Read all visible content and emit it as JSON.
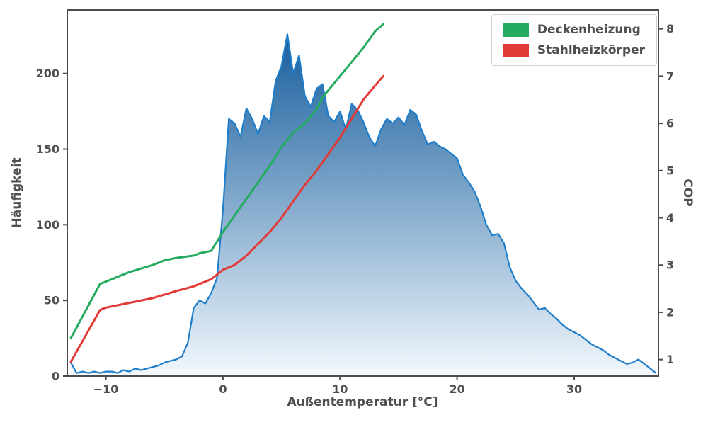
{
  "chart_data": {
    "type": "area",
    "title": "",
    "x_axis": {
      "label": "Außentemperatur [°C]",
      "ticks": [
        -10,
        0,
        10,
        20,
        30
      ],
      "lim": [
        -13.3,
        37.2
      ]
    },
    "y_axis_left": {
      "label": "Häufigkeit",
      "ticks": [
        0,
        50,
        100,
        150,
        200
      ],
      "lim": [
        0,
        242
      ]
    },
    "y_axis_right": {
      "label": "COP",
      "ticks": [
        1,
        2,
        3,
        4,
        5,
        6,
        7,
        8
      ],
      "lim": [
        0.65,
        8.4
      ]
    },
    "histogram": {
      "name": "Häufigkeit",
      "axis": "left",
      "x_start": -13.0,
      "x_step": 0.5,
      "values": [
        9,
        2,
        3,
        2,
        3,
        2,
        3,
        3,
        2,
        4,
        3,
        5,
        4,
        5,
        6,
        7,
        9,
        10,
        11,
        13,
        22,
        45,
        50,
        48,
        55,
        65,
        110,
        170,
        167,
        158,
        177,
        170,
        160,
        172,
        168,
        195,
        205,
        226,
        200,
        212,
        185,
        178,
        190,
        193,
        172,
        168,
        175,
        163,
        180,
        176,
        168,
        158,
        152,
        163,
        170,
        167,
        171,
        166,
        176,
        173,
        162,
        153,
        155,
        152,
        150,
        147,
        144,
        133,
        128,
        122,
        112,
        100,
        93,
        94,
        88,
        72,
        63,
        58,
        54,
        49,
        44,
        45,
        41,
        38,
        34,
        31,
        29,
        27,
        24,
        21,
        19,
        17,
        14,
        12,
        10,
        8,
        9,
        11,
        8,
        5,
        2
      ]
    },
    "series": [
      {
        "name": "Deckenheizung",
        "axis": "right",
        "color_key": "green",
        "x": [
          -13,
          -10.5,
          -10,
          -8,
          -6,
          -5,
          -4,
          -2.5,
          -2,
          -1,
          0,
          1,
          2,
          3,
          4,
          5,
          6,
          7,
          8,
          8.5,
          9,
          10,
          11,
          12,
          13,
          13.7
        ],
        "values": [
          1.45,
          2.6,
          2.65,
          2.85,
          3.0,
          3.1,
          3.15,
          3.2,
          3.25,
          3.3,
          3.7,
          4.05,
          4.4,
          4.75,
          5.1,
          5.5,
          5.8,
          6.0,
          6.3,
          6.55,
          6.7,
          7.0,
          7.3,
          7.6,
          7.95,
          8.1
        ]
      },
      {
        "name": "Stahlheizkörper",
        "axis": "right",
        "color_key": "red",
        "x": [
          -13,
          -10.5,
          -10,
          -8,
          -6,
          -4,
          -2.5,
          -1,
          0,
          1,
          2,
          3,
          4,
          5,
          6,
          7,
          8,
          9,
          10,
          11,
          12,
          13,
          13.7
        ],
        "values": [
          0.95,
          2.05,
          2.1,
          2.2,
          2.3,
          2.45,
          2.55,
          2.7,
          2.9,
          3.0,
          3.2,
          3.45,
          3.7,
          4.0,
          4.35,
          4.7,
          5.0,
          5.35,
          5.7,
          6.1,
          6.5,
          6.8,
          7.0
        ]
      }
    ],
    "legend": {
      "position": "upper right",
      "items": [
        "Deckenheizung",
        "Stahlheizkörper"
      ]
    },
    "colors": {
      "green": "#24ab5f",
      "red": "#e23a36",
      "hist_line": "#1f7ecb",
      "hist_grad_top": "#175e9d",
      "hist_grad_bottom": "#f2f8fd",
      "axis": "#4c4c4c",
      "text": "#4f4f4f"
    }
  }
}
